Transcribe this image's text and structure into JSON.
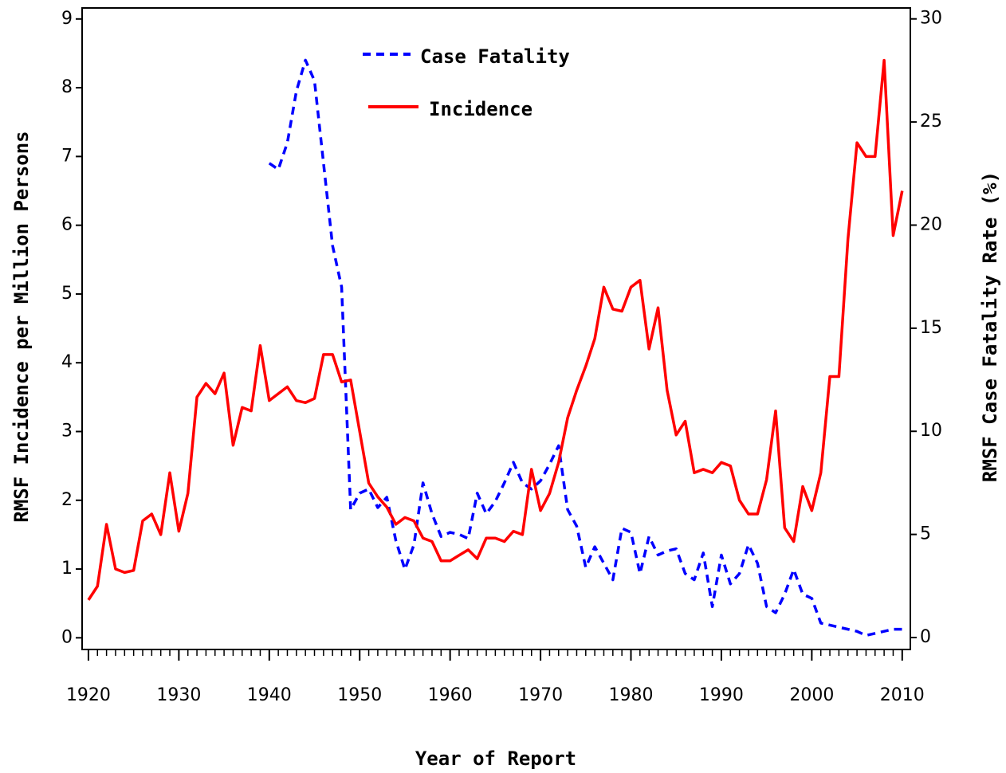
{
  "chart_data": {
    "type": "line",
    "xlabel": "Year of Report",
    "ylabel": "RMSF Incidence per Million Persons",
    "y2label": "RMSF Case Fatality Rate (%)",
    "x": [
      1920,
      1921,
      1922,
      1923,
      1924,
      1925,
      1926,
      1927,
      1928,
      1929,
      1930,
      1931,
      1932,
      1933,
      1934,
      1935,
      1936,
      1937,
      1938,
      1939,
      1940,
      1941,
      1942,
      1943,
      1944,
      1945,
      1946,
      1947,
      1948,
      1949,
      1950,
      1951,
      1952,
      1953,
      1954,
      1955,
      1956,
      1957,
      1958,
      1959,
      1960,
      1961,
      1962,
      1963,
      1964,
      1965,
      1966,
      1967,
      1968,
      1969,
      1970,
      1971,
      1972,
      1973,
      1974,
      1975,
      1976,
      1977,
      1978,
      1979,
      1980,
      1981,
      1982,
      1983,
      1984,
      1985,
      1986,
      1987,
      1988,
      1989,
      1990,
      1991,
      1992,
      1993,
      1994,
      1995,
      1996,
      1997,
      1998,
      1999,
      2000,
      2001,
      2002,
      2003,
      2004,
      2005,
      2006,
      2007,
      2008,
      2009,
      2010
    ],
    "series": [
      {
        "name": "Case Fatality",
        "color": "#0000ff",
        "dash": true,
        "axis": "y2",
        "values": [
          null,
          null,
          null,
          null,
          null,
          null,
          null,
          null,
          null,
          null,
          null,
          null,
          null,
          null,
          null,
          null,
          null,
          null,
          null,
          null,
          23,
          22.7,
          24,
          26.5,
          28,
          27,
          23,
          19,
          17,
          6.2,
          7.0,
          7.2,
          6.3,
          6.8,
          4.7,
          3.3,
          4.5,
          7.5,
          6.0,
          4.9,
          5.1,
          5.0,
          4.8,
          7.0,
          6.0,
          6.6,
          7.5,
          8.5,
          7.5,
          7.2,
          7.6,
          8.4,
          9.3,
          6.2,
          5.4,
          3.4,
          4.4,
          3.6,
          2.8,
          5.3,
          5.1,
          3.1,
          4.9,
          4.0,
          4.2,
          4.3,
          3.1,
          2.8,
          4.1,
          1.5,
          4.0,
          2.6,
          3.1,
          4.5,
          3.6,
          1.5,
          1.2,
          2.1,
          3.3,
          2.1,
          1.9,
          0.7,
          0.6,
          0.5,
          0.4,
          0.3,
          0.1,
          0.2,
          0.3,
          0.4,
          0.4
        ]
      },
      {
        "name": "Incidence",
        "color": "#ff0000",
        "dash": false,
        "axis": "y",
        "values": [
          0.55,
          0.75,
          1.65,
          1.0,
          0.95,
          0.98,
          1.7,
          1.8,
          1.5,
          2.4,
          1.55,
          2.1,
          3.5,
          3.7,
          3.55,
          3.85,
          2.8,
          3.35,
          3.3,
          4.25,
          3.45,
          3.55,
          3.65,
          3.45,
          3.42,
          3.48,
          4.12,
          4.12,
          3.72,
          3.75,
          3.0,
          2.25,
          2.05,
          1.9,
          1.65,
          1.75,
          1.7,
          1.45,
          1.4,
          1.12,
          1.12,
          1.2,
          1.28,
          1.15,
          1.45,
          1.45,
          1.4,
          1.55,
          1.5,
          2.45,
          1.85,
          2.1,
          2.55,
          3.2,
          3.6,
          3.95,
          4.35,
          5.1,
          4.78,
          4.75,
          5.1,
          5.2,
          4.2,
          4.8,
          3.6,
          2.95,
          3.15,
          2.4,
          2.45,
          2.4,
          2.55,
          2.5,
          2.0,
          1.8,
          1.8,
          2.3,
          3.3,
          1.6,
          1.4,
          2.2,
          1.85,
          2.4,
          3.8,
          3.8,
          5.8,
          7.2,
          7.0,
          7.0,
          8.4,
          5.85,
          6.5
        ]
      }
    ],
    "xlim": [
      1919.3,
      2010.9
    ],
    "xticks": [
      1920,
      1930,
      1940,
      1950,
      1960,
      1970,
      1980,
      1990,
      2000,
      2010
    ],
    "ylim": [
      -0.17,
      9.16
    ],
    "yticks": [
      0,
      1,
      2,
      3,
      4,
      5,
      6,
      7,
      8,
      9
    ],
    "y2lim": [
      -0.58,
      30.53
    ],
    "y2ticks": [
      0,
      5,
      10,
      15,
      20,
      25,
      30
    ],
    "legend": "top-center"
  }
}
